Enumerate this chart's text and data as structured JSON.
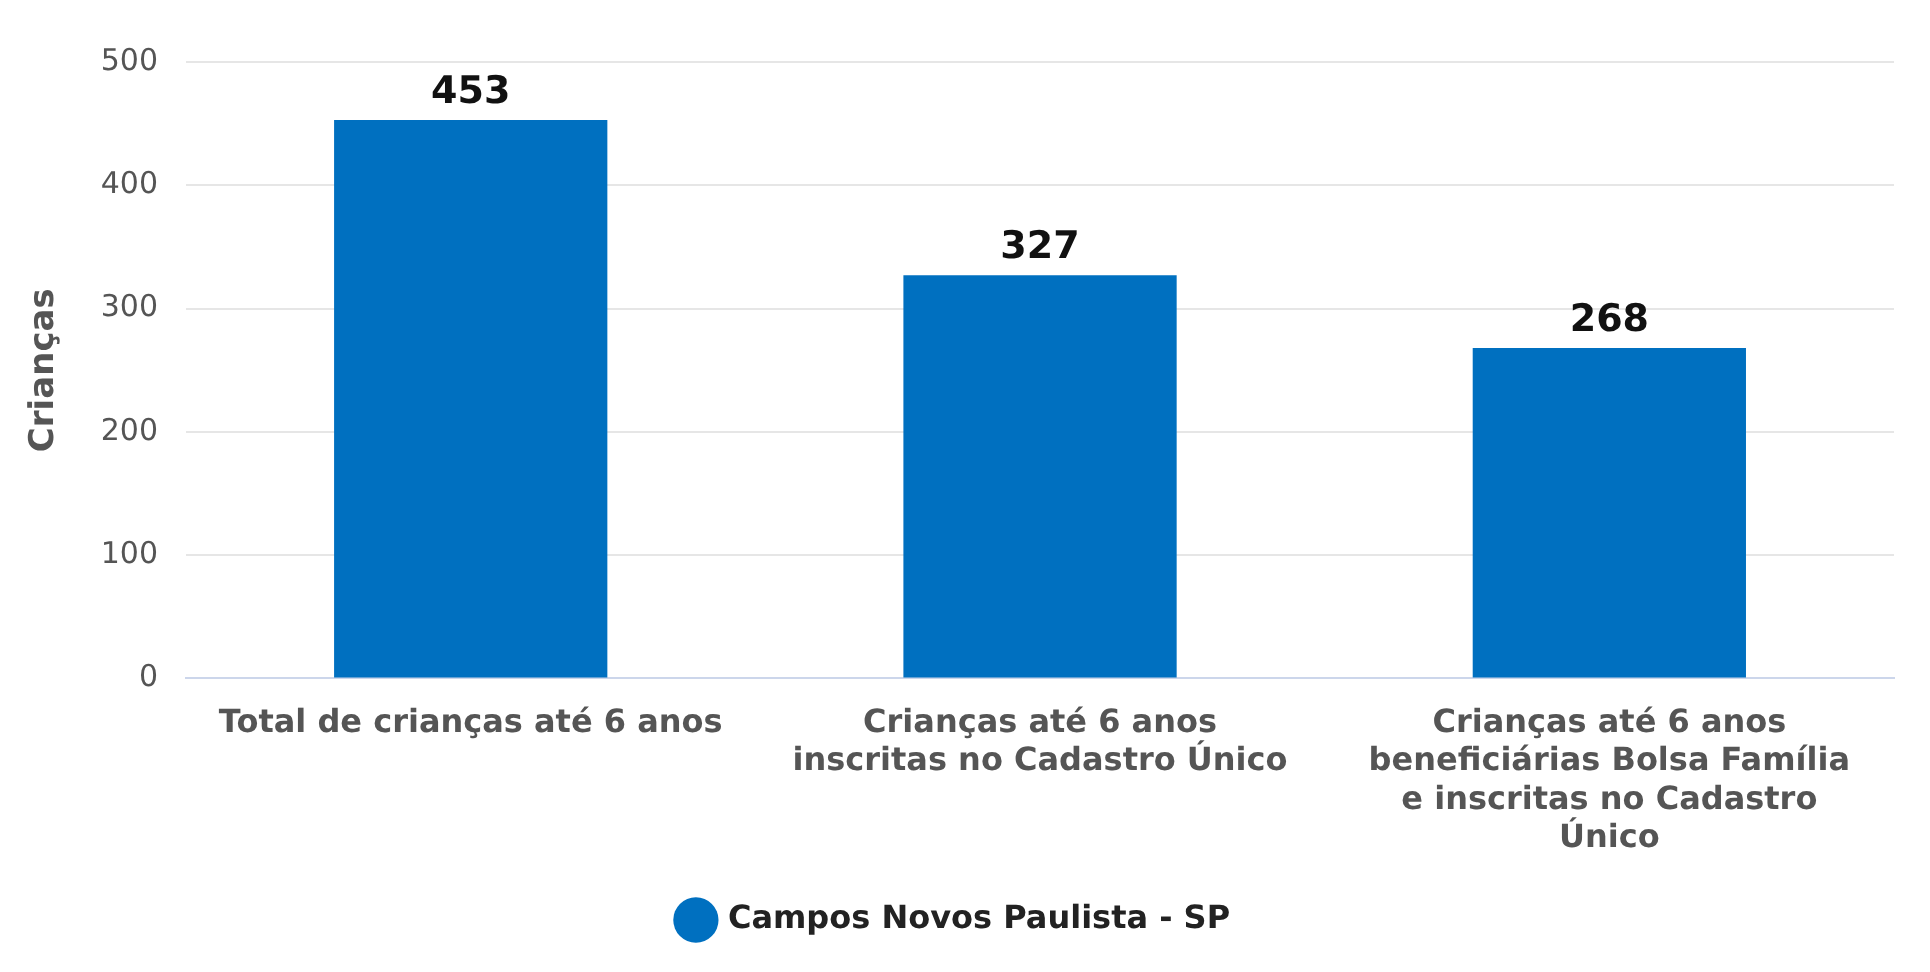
{
  "chart_data": {
    "type": "bar",
    "categories": [
      "Total de crianças até 6 anos",
      "Crianças até 6 anos inscritas no Cadastro Único",
      "Crianças até 6 anos beneficiárias Bolsa Família e inscritas no Cadastro Único"
    ],
    "series": [
      {
        "name": "Campos Novos Paulista - SP",
        "color": "#0070c0",
        "values": [
          453,
          327,
          268
        ]
      }
    ],
    "ylabel": "Crianças",
    "ylim": [
      0,
      500
    ],
    "yticks": [
      0,
      100,
      200,
      300,
      400,
      500
    ],
    "grid": "y",
    "legend": "bottom",
    "data_labels": true
  }
}
